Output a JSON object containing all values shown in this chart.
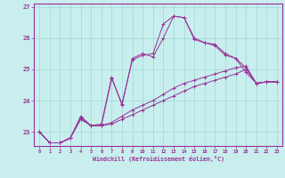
{
  "background_color": "#c8eeee",
  "grid_color": "#a0d8d8",
  "line_color": "#993399",
  "spine_color": "#993399",
  "xlim": [
    -0.5,
    23.5
  ],
  "ylim": [
    22.55,
    27.1
  ],
  "yticks": [
    23,
    24,
    25,
    26,
    27
  ],
  "xticks": [
    0,
    1,
    2,
    3,
    4,
    5,
    6,
    7,
    8,
    9,
    10,
    11,
    12,
    13,
    14,
    15,
    16,
    17,
    18,
    19,
    20,
    21,
    22,
    23
  ],
  "xlabel": "Windchill (Refroidissement éolien,°C)",
  "series": [
    [
      23.0,
      22.65,
      22.65,
      22.8,
      23.5,
      23.2,
      23.25,
      24.75,
      23.85,
      25.35,
      25.5,
      25.4,
      26.0,
      26.7,
      26.65,
      26.0,
      25.85,
      25.8,
      25.5,
      25.35,
      25.05,
      24.55,
      24.6,
      24.6
    ],
    [
      23.0,
      22.65,
      22.65,
      22.8,
      23.45,
      23.2,
      23.2,
      23.3,
      23.5,
      23.7,
      23.85,
      24.0,
      24.2,
      24.4,
      24.55,
      24.65,
      24.75,
      24.85,
      24.95,
      25.05,
      25.1,
      24.55,
      24.6,
      24.6
    ],
    [
      23.0,
      22.65,
      22.65,
      22.8,
      23.4,
      23.2,
      23.2,
      23.25,
      23.4,
      23.55,
      23.7,
      23.85,
      24.0,
      24.15,
      24.3,
      24.45,
      24.55,
      24.65,
      24.75,
      24.85,
      25.0,
      24.55,
      24.6,
      24.6
    ],
    [
      23.0,
      22.65,
      22.65,
      22.82,
      23.45,
      23.2,
      23.2,
      24.7,
      23.9,
      25.3,
      25.45,
      25.5,
      26.45,
      26.7,
      26.65,
      25.95,
      25.85,
      25.75,
      25.45,
      25.35,
      24.9,
      24.55,
      24.6,
      24.6
    ]
  ]
}
